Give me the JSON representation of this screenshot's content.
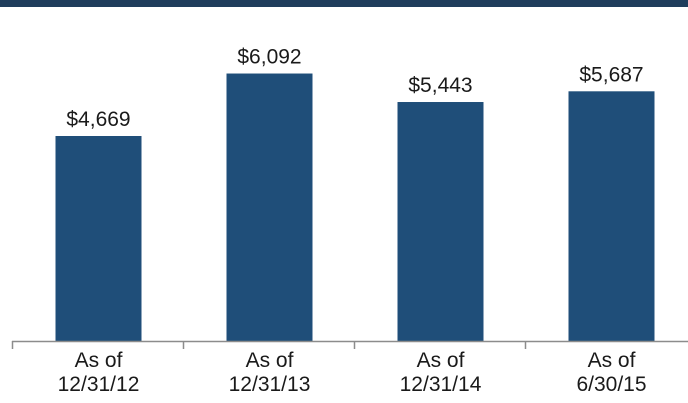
{
  "chart_data": {
    "type": "bar",
    "categories": [
      "As of 12/31/12",
      "As of 12/31/13",
      "As of 12/31/14",
      "As of 6/30/15"
    ],
    "category_lines": [
      [
        "As of",
        "12/31/12"
      ],
      [
        "As of",
        "12/31/13"
      ],
      [
        "As of",
        "12/31/14"
      ],
      [
        "As of",
        "6/30/15"
      ]
    ],
    "values": [
      4669,
      6092,
      5443,
      5687
    ],
    "data_labels": [
      "$4,669",
      "$6,092",
      "$5,443",
      "$5,687"
    ],
    "ylim": [
      0,
      6500
    ],
    "grid": false,
    "legend": "none",
    "colors": {
      "bar": "#1f4e79",
      "top_band": "#1f3d5c",
      "axis": "#8c8c8c",
      "text": "#1a1a1a"
    }
  }
}
